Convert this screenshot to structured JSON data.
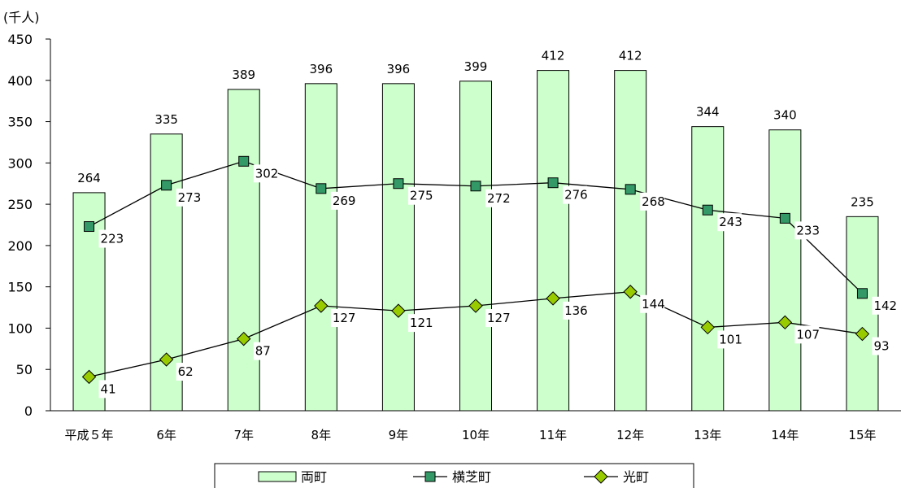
{
  "chart_data": {
    "type": "bar",
    "unit_label": "(千人)",
    "categories": [
      "平成５年",
      "6年",
      "7年",
      "8年",
      "9年",
      "10年",
      "11年",
      "12年",
      "13年",
      "14年",
      "15年"
    ],
    "ylim": [
      0,
      450
    ],
    "yticks": [
      0,
      50,
      100,
      150,
      200,
      250,
      300,
      350,
      400,
      450
    ],
    "grid": false,
    "legend_position": "bottom",
    "series": [
      {
        "name": "両町",
        "kind": "bar",
        "color": "#ccffcc",
        "stroke": "#000000",
        "values": [
          264,
          335,
          389,
          396,
          396,
          399,
          412,
          412,
          344,
          340,
          235
        ]
      },
      {
        "name": "横芝町",
        "kind": "line",
        "marker": "square",
        "color": "#339966",
        "stroke": "#000000",
        "values": [
          223,
          273,
          302,
          269,
          275,
          272,
          276,
          268,
          243,
          233,
          142
        ]
      },
      {
        "name": "光町",
        "kind": "line",
        "marker": "diamond",
        "color": "#99cc00",
        "stroke": "#000000",
        "values": [
          41,
          62,
          87,
          127,
          121,
          127,
          136,
          144,
          101,
          107,
          93
        ]
      }
    ]
  }
}
